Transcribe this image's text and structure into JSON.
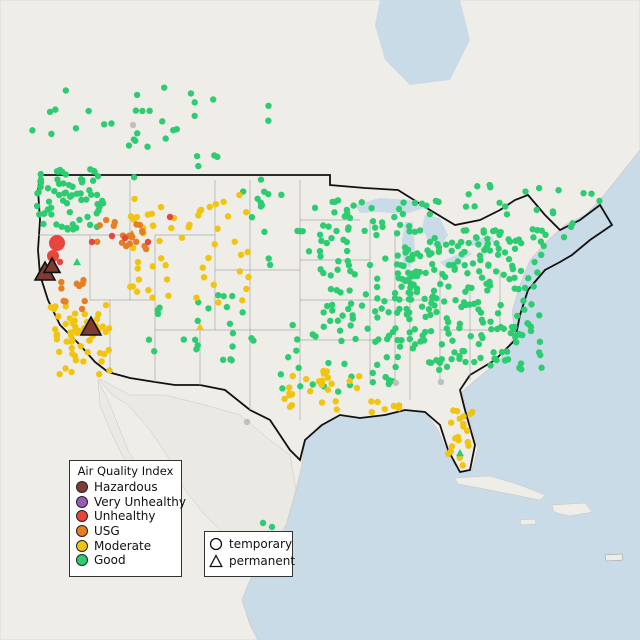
{
  "legend": {
    "title": "Air Quality Index",
    "categories": [
      {
        "key": "hazardous",
        "label": "Hazardous",
        "color": "#7e3b33"
      },
      {
        "key": "very_unhealthy",
        "label": "Very Unhealthy",
        "color": "#9b59b6"
      },
      {
        "key": "unhealthy",
        "label": "Unhealthy",
        "color": "#e8453c"
      },
      {
        "key": "usg",
        "label": "USG",
        "color": "#e67e22"
      },
      {
        "key": "moderate",
        "label": "Moderate",
        "color": "#f1c40f"
      },
      {
        "key": "good",
        "label": "Good",
        "color": "#2ecc71"
      }
    ]
  },
  "type_legend": {
    "items": [
      {
        "key": "temporary",
        "label": "temporary",
        "symbol": "circle"
      },
      {
        "key": "permanent",
        "label": "permanent",
        "symbol": "triangle"
      }
    ]
  },
  "colors": {
    "water": "#c5d9e6",
    "land": "#f0eeea",
    "land_shade": "#e4e2dd",
    "border": "#111111",
    "state_line": "#999999",
    "no_data": "#c0c0c0"
  }
}
